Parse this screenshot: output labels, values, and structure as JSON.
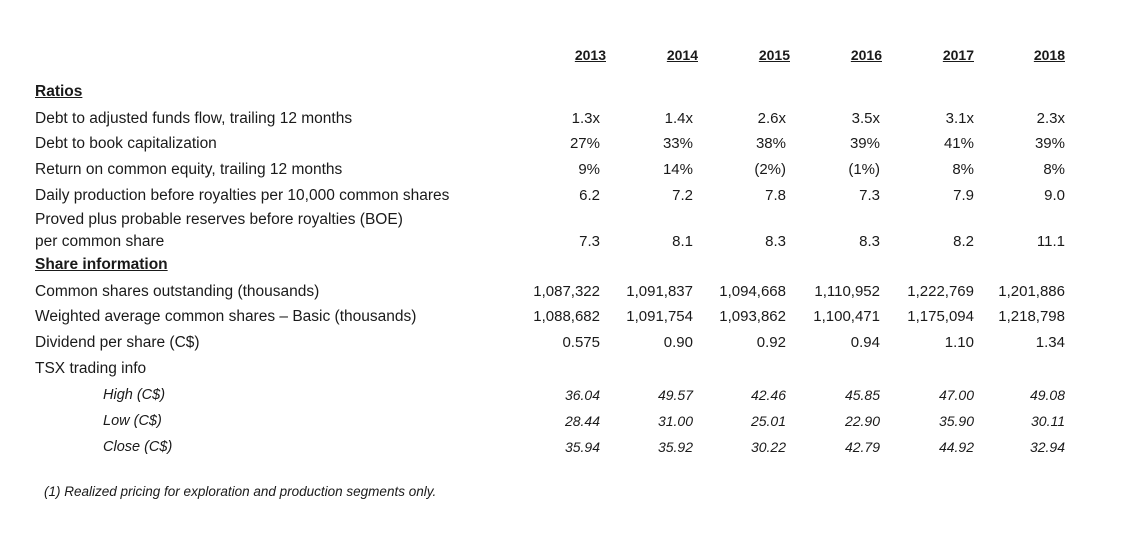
{
  "years": [
    "2013",
    "2014",
    "2015",
    "2016",
    "2017",
    "2018"
  ],
  "sections": {
    "ratios": "Ratios",
    "share_information": "Share information"
  },
  "rows": [
    {
      "label": "Debt to adjusted funds flow, trailing 12 months",
      "values": [
        "1.3x",
        "1.4x",
        "2.6x",
        "3.5x",
        "3.1x",
        "2.3x"
      ]
    },
    {
      "label": "Debt to book capitalization",
      "values": [
        "27%",
        "33%",
        "38%",
        "39%",
        "41%",
        "39%"
      ]
    },
    {
      "label": "Return on common equity, trailing 12 months",
      "values": [
        "9%",
        "14%",
        "(2%)",
        "(1%)",
        "8%",
        "8%"
      ]
    },
    {
      "label": "Daily production before royalties per 10,000 common shares",
      "values": [
        "6.2",
        "7.2",
        "7.8",
        "7.3",
        "7.9",
        "9.0"
      ]
    },
    {
      "label_line1": "Proved plus probable reserves before royalties (BOE)",
      "label_line2": "per common share",
      "values": [
        "7.3",
        "8.1",
        "8.3",
        "8.3",
        "8.2",
        "11.1"
      ]
    },
    {
      "label": "Common shares outstanding (thousands)",
      "values": [
        "1,087,322",
        "1,091,837",
        "1,094,668",
        "1,110,952",
        "1,222,769",
        "1,201,886"
      ]
    },
    {
      "label": "Weighted average common shares – Basic (thousands)",
      "values": [
        "1,088,682",
        "1,091,754",
        "1,093,862",
        "1,100,471",
        "1,175,094",
        "1,218,798"
      ]
    },
    {
      "label": "Dividend per share (C$)",
      "values": [
        "0.575",
        "0.90",
        "0.92",
        "0.94",
        "1.10",
        "1.34"
      ]
    },
    {
      "label": "TSX trading info",
      "values": []
    },
    {
      "label": "High (C$)",
      "values": [
        "36.04",
        "49.57",
        "42.46",
        "45.85",
        "47.00",
        "49.08"
      ]
    },
    {
      "label": "Low (C$)",
      "values": [
        "28.44",
        "31.00",
        "25.01",
        "22.90",
        "35.90",
        "30.11"
      ]
    },
    {
      "label": "Close (C$)",
      "values": [
        "35.94",
        "35.92",
        "30.22",
        "42.79",
        "44.92",
        "32.94"
      ]
    }
  ],
  "footnote": "(1) Realized pricing for exploration and production segments only."
}
